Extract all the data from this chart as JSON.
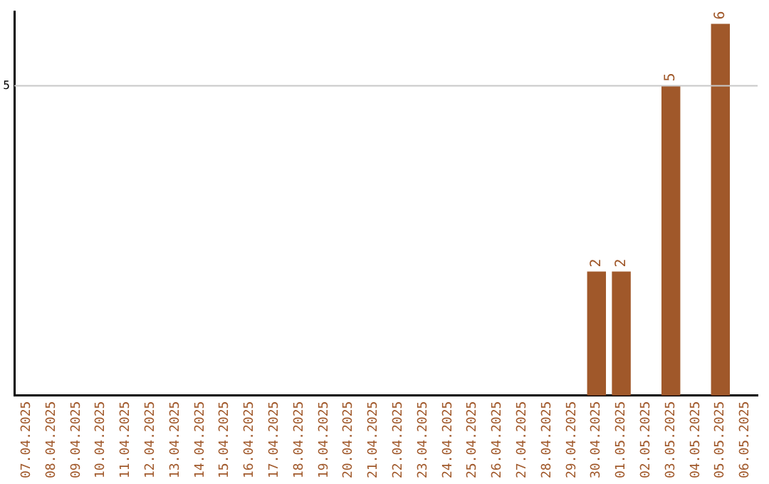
{
  "chart_data": {
    "type": "bar",
    "categories": [
      "07.04.2025",
      "08.04.2025",
      "09.04.2025",
      "10.04.2025",
      "11.04.2025",
      "12.04.2025",
      "13.04.2025",
      "14.04.2025",
      "15.04.2025",
      "16.04.2025",
      "17.04.2025",
      "18.04.2025",
      "19.04.2025",
      "20.04.2025",
      "21.04.2025",
      "22.04.2025",
      "23.04.2025",
      "24.04.2025",
      "25.04.2025",
      "26.04.2025",
      "27.04.2025",
      "28.04.2025",
      "29.04.2025",
      "30.04.2025",
      "01.05.2025",
      "02.05.2025",
      "03.05.2025",
      "04.05.2025",
      "05.05.2025",
      "06.05.2025"
    ],
    "values": [
      null,
      null,
      null,
      null,
      null,
      null,
      null,
      null,
      null,
      null,
      null,
      null,
      null,
      null,
      null,
      null,
      null,
      null,
      null,
      null,
      null,
      null,
      null,
      2,
      2,
      null,
      5,
      null,
      6,
      null
    ],
    "color": "#a0582a",
    "ylim": [
      0,
      6.2
    ],
    "ref_lines": [
      {
        "axis": "y",
        "value": 5,
        "label": "5",
        "color": "#c8c8c8"
      }
    ],
    "data_labels": true
  }
}
